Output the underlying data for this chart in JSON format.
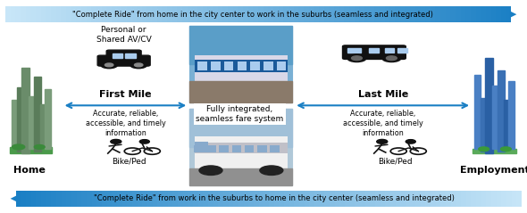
{
  "top_text": "\"Complete Ride\" from home in the city center to work in the suburbs (seamless and integrated)",
  "bottom_text": "\"Complete Ride\" from work in the suburbs to home in the city center (seamless and integrated)",
  "first_mile_label": "First Mile",
  "last_mile_label": "Last Mile",
  "center_label": "Fully integrated,\nseamless fare system",
  "first_mile_sub": "Accurate, reliable,\naccessible, and timely\ninformation",
  "last_mile_sub": "Accurate, reliable,\naccessible, and timely\ninformation",
  "home_label": "Home",
  "employment_label": "Employment",
  "personal_label": "Personal or\nShared AV/CV",
  "bike_ped_label": "Bike/Ped",
  "arrow_color": "#1a7fc4",
  "bg_color": "#ffffff",
  "fig_width": 5.9,
  "fig_height": 2.39,
  "dpi": 100
}
